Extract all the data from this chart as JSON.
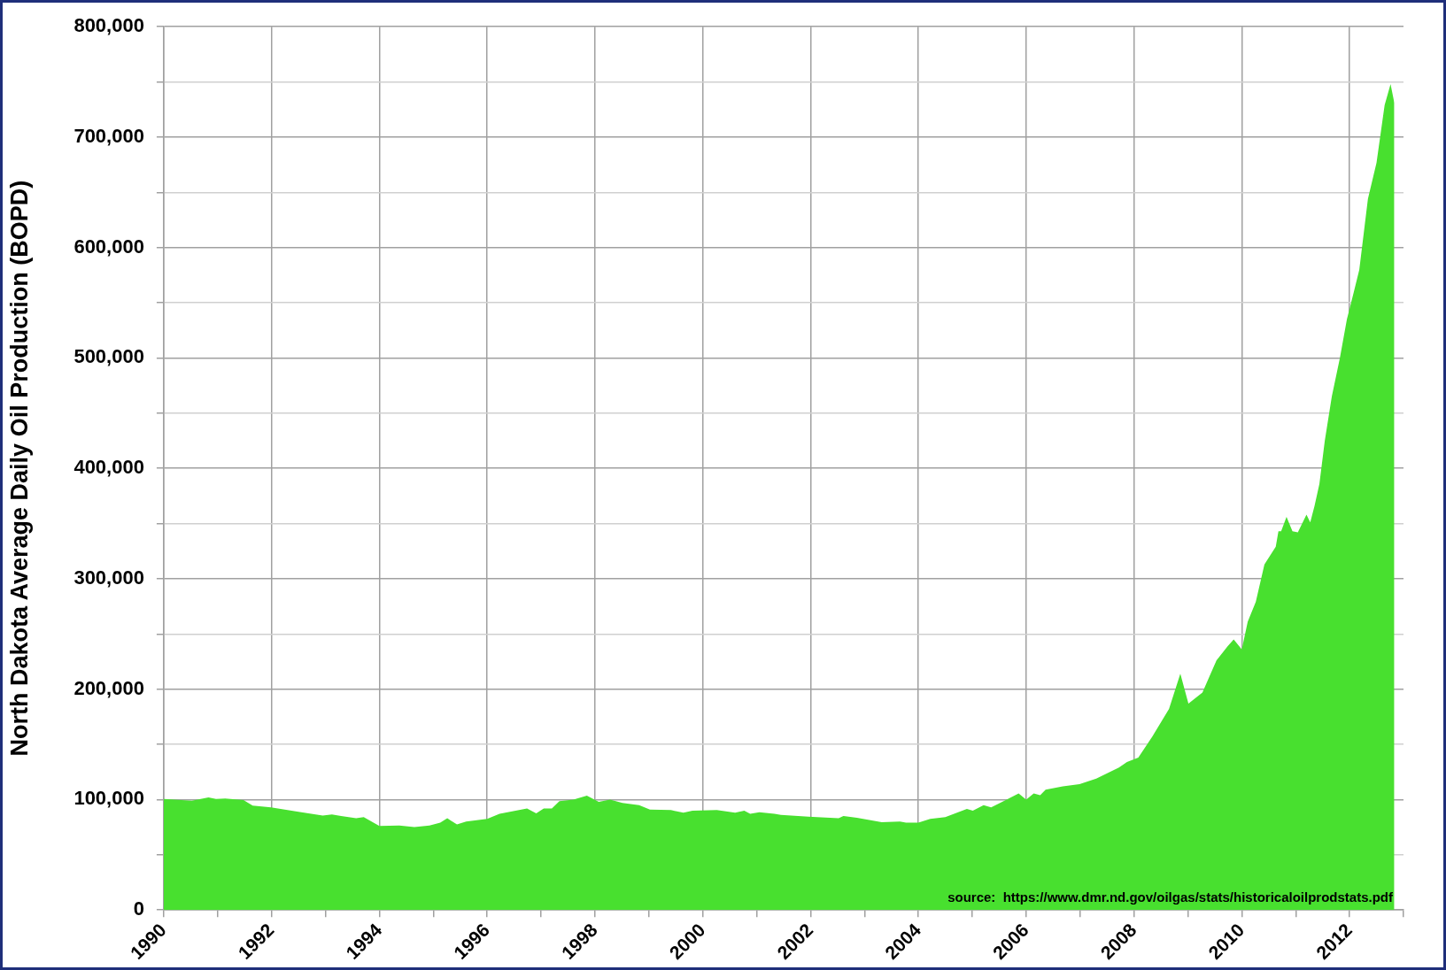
{
  "chart_data": {
    "type": "area",
    "ylabel": "North Dakota Average Daily Oil Production (BOPD)",
    "annotations": [
      "source:  https://www.dmr.nd.gov/oilgas/stats/historicaloilprodstats.pdf"
    ],
    "x": [
      1990.0,
      1990.52,
      1990.83,
      1990.97,
      1991.14,
      1991.48,
      1991.65,
      1991.99,
      1992.5,
      1992.95,
      1993.12,
      1993.29,
      1993.57,
      1993.71,
      1994.0,
      1994.37,
      1994.65,
      1994.93,
      1995.13,
      1995.26,
      1995.44,
      1995.61,
      1996.0,
      1996.23,
      1996.74,
      1996.91,
      1997.05,
      1997.2,
      1997.34,
      1997.6,
      1997.85,
      1998.07,
      1998.28,
      1998.51,
      1998.82,
      1999.02,
      1999.41,
      1999.64,
      1999.81,
      2000.26,
      2000.6,
      2000.77,
      2000.88,
      2001.05,
      2001.33,
      2001.45,
      2001.96,
      2002.52,
      2002.61,
      2002.86,
      2003.32,
      2003.66,
      2003.77,
      2004.0,
      2004.22,
      2004.5,
      2004.9,
      2005.01,
      2005.21,
      2005.35,
      2005.58,
      2005.86,
      2006.0,
      2006.14,
      2006.26,
      2006.36,
      2006.68,
      2006.99,
      2007.3,
      2007.72,
      2007.87,
      2008.08,
      2008.34,
      2008.65,
      2008.86,
      2009.01,
      2009.27,
      2009.53,
      2009.74,
      2009.85,
      2010.0,
      2010.11,
      2010.26,
      2010.42,
      2010.63,
      2010.68,
      2010.73,
      2010.83,
      2010.94,
      2011.04,
      2011.2,
      2011.27,
      2011.35,
      2011.44,
      2011.54,
      2011.67,
      2011.82,
      2011.95,
      2012.08,
      2012.18,
      2012.34,
      2012.5,
      2012.65,
      2012.76,
      2012.83
    ],
    "series": [
      {
        "color": "#48e02f",
        "values": [
          100500,
          99000,
          102000,
          100500,
          101000,
          99500,
          94500,
          93000,
          89000,
          85500,
          86500,
          85000,
          83000,
          84000,
          76000,
          76500,
          75000,
          76500,
          79000,
          83000,
          77500,
          80000,
          82500,
          87000,
          92000,
          87500,
          92000,
          92000,
          98500,
          100000,
          103500,
          98000,
          100000,
          97000,
          95000,
          91000,
          90500,
          88000,
          90000,
          90500,
          88000,
          90000,
          87000,
          88500,
          87000,
          86000,
          84500,
          83000,
          85000,
          83500,
          79500,
          80000,
          79000,
          79000,
          82500,
          84000,
          91500,
          90000,
          95000,
          93000,
          98500,
          105500,
          100000,
          105500,
          104000,
          109000,
          112000,
          114000,
          119000,
          129000,
          134000,
          138000,
          157000,
          182000,
          214000,
          187000,
          197000,
          226000,
          239000,
          245000,
          236000,
          261000,
          279000,
          313000,
          329000,
          343000,
          343000,
          356000,
          343000,
          342000,
          358000,
          351000,
          366000,
          386000,
          425000,
          465000,
          500000,
          535000,
          560000,
          580000,
          644000,
          677000,
          729000,
          748000,
          731000
        ]
      }
    ],
    "xlim": [
      1990,
      2013
    ],
    "xticks": [
      1990,
      {
        "value": 1991,
        "label": null
      },
      1992,
      {
        "value": 1993,
        "label": null
      },
      1994,
      {
        "value": 1995,
        "label": null
      },
      1996,
      {
        "value": 1997,
        "label": null
      },
      1998,
      {
        "value": 1999,
        "label": null
      },
      2000,
      {
        "value": 2001,
        "label": null
      },
      2002,
      {
        "value": 2003,
        "label": null
      },
      2004,
      {
        "value": 2005,
        "label": null
      },
      2006,
      {
        "value": 2007,
        "label": null
      },
      2008,
      {
        "value": 2009,
        "label": null
      },
      2010,
      {
        "value": 2011,
        "label": null
      },
      2012,
      {
        "value": 2013,
        "label": null
      }
    ],
    "ylim": [
      0,
      800000
    ],
    "yticks": [
      {
        "value": 0,
        "label": "0"
      },
      {
        "value": 50000,
        "label": null
      },
      {
        "value": 100000,
        "label": "100,000"
      },
      {
        "value": 150000,
        "label": null
      },
      {
        "value": 200000,
        "label": "200,000"
      },
      {
        "value": 250000,
        "label": null
      },
      {
        "value": 300000,
        "label": "300,000"
      },
      {
        "value": 350000,
        "label": null
      },
      {
        "value": 400000,
        "label": "400,000"
      },
      {
        "value": 450000,
        "label": null
      },
      {
        "value": 500000,
        "label": "500,000"
      },
      {
        "value": 550000,
        "label": null
      },
      {
        "value": 600000,
        "label": "600,000"
      },
      {
        "value": 650000,
        "label": null
      },
      {
        "value": 700000,
        "label": "700,000"
      },
      {
        "value": 750000,
        "label": null
      },
      {
        "value": 800000,
        "label": "800,000"
      }
    ],
    "grid": true,
    "legend": false,
    "marker": "none"
  }
}
